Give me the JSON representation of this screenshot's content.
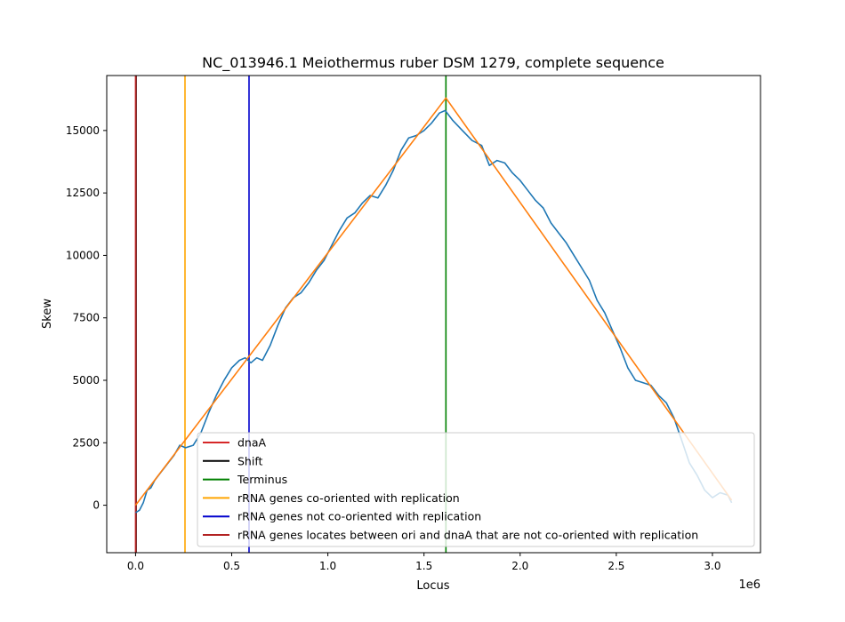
{
  "chart_data": {
    "type": "line",
    "title": "NC_013946.1 Meiothermus ruber DSM 1279, complete sequence",
    "xlabel": "Locus",
    "ylabel": "Skew",
    "x_offset_label": "1e6",
    "xlim": [
      -150000,
      3250000
    ],
    "ylim": [
      -1900,
      17200
    ],
    "x_ticks": [
      0,
      500000,
      1000000,
      1500000,
      2000000,
      2500000,
      3000000
    ],
    "x_tick_labels": [
      "0.0",
      "0.5",
      "1.0",
      "1.5",
      "2.0",
      "2.5",
      "3.0"
    ],
    "y_ticks": [
      0,
      2500,
      5000,
      7500,
      10000,
      12500,
      15000
    ],
    "y_tick_labels": [
      "0",
      "2500",
      "5000",
      "7500",
      "10000",
      "12500",
      "15000"
    ],
    "grid": false,
    "legend_position": "lower-right",
    "series": [
      {
        "name": "",
        "color": "#1f77b4",
        "points": [
          [
            0,
            -300
          ],
          [
            20000,
            -200
          ],
          [
            40000,
            100
          ],
          [
            60000,
            600
          ],
          [
            80000,
            700
          ],
          [
            100000,
            1000
          ],
          [
            130000,
            1300
          ],
          [
            160000,
            1600
          ],
          [
            200000,
            2000
          ],
          [
            230000,
            2400
          ],
          [
            260000,
            2300
          ],
          [
            300000,
            2400
          ],
          [
            340000,
            2900
          ],
          [
            380000,
            3700
          ],
          [
            420000,
            4400
          ],
          [
            460000,
            5000
          ],
          [
            500000,
            5500
          ],
          [
            540000,
            5800
          ],
          [
            570000,
            5900
          ],
          [
            600000,
            5700
          ],
          [
            630000,
            5900
          ],
          [
            660000,
            5800
          ],
          [
            700000,
            6400
          ],
          [
            740000,
            7200
          ],
          [
            780000,
            7900
          ],
          [
            820000,
            8300
          ],
          [
            860000,
            8500
          ],
          [
            900000,
            8900
          ],
          [
            940000,
            9400
          ],
          [
            980000,
            9800
          ],
          [
            1020000,
            10400
          ],
          [
            1060000,
            11000
          ],
          [
            1100000,
            11500
          ],
          [
            1140000,
            11700
          ],
          [
            1180000,
            12100
          ],
          [
            1220000,
            12400
          ],
          [
            1260000,
            12300
          ],
          [
            1300000,
            12800
          ],
          [
            1340000,
            13400
          ],
          [
            1380000,
            14200
          ],
          [
            1420000,
            14700
          ],
          [
            1460000,
            14800
          ],
          [
            1500000,
            15000
          ],
          [
            1540000,
            15300
          ],
          [
            1580000,
            15700
          ],
          [
            1610000,
            15800
          ],
          [
            1650000,
            15400
          ],
          [
            1700000,
            15000
          ],
          [
            1750000,
            14600
          ],
          [
            1800000,
            14400
          ],
          [
            1840000,
            13600
          ],
          [
            1880000,
            13800
          ],
          [
            1920000,
            13700
          ],
          [
            1960000,
            13300
          ],
          [
            2000000,
            13000
          ],
          [
            2040000,
            12600
          ],
          [
            2080000,
            12200
          ],
          [
            2120000,
            11900
          ],
          [
            2160000,
            11300
          ],
          [
            2200000,
            10900
          ],
          [
            2240000,
            10500
          ],
          [
            2280000,
            10000
          ],
          [
            2320000,
            9500
          ],
          [
            2360000,
            9000
          ],
          [
            2400000,
            8200
          ],
          [
            2440000,
            7700
          ],
          [
            2480000,
            7000
          ],
          [
            2520000,
            6300
          ],
          [
            2560000,
            5500
          ],
          [
            2600000,
            5000
          ],
          [
            2640000,
            4900
          ],
          [
            2680000,
            4800
          ],
          [
            2720000,
            4400
          ],
          [
            2760000,
            4100
          ],
          [
            2800000,
            3500
          ],
          [
            2840000,
            2600
          ],
          [
            2880000,
            1700
          ],
          [
            2920000,
            1200
          ],
          [
            2960000,
            600
          ],
          [
            3000000,
            300
          ],
          [
            3040000,
            500
          ],
          [
            3080000,
            400
          ],
          [
            3100000,
            100
          ]
        ]
      },
      {
        "name": "",
        "color": "#ff7f0e",
        "points": [
          [
            0,
            0
          ],
          [
            1614000,
            16300
          ],
          [
            3100000,
            200
          ]
        ]
      }
    ],
    "vertical_lines": [
      {
        "name": "dnaA",
        "x": 0,
        "color": "#d62728"
      },
      {
        "name": "Shift",
        "x": 3000,
        "color": "#000000"
      },
      {
        "name": "Terminus",
        "x": 1614000,
        "color": "#008000"
      },
      {
        "name": "rRNA genes co-oriented with replication",
        "x": 257000,
        "color": "#ffa500"
      },
      {
        "name": "rRNA genes not co-oriented with replication",
        "x": 590000,
        "color": "#0000cd"
      },
      {
        "name": "rRNA genes locates between ori and dnaA that are not co-oriented with replication",
        "x": 1500,
        "color": "#b22222"
      }
    ],
    "legend": [
      {
        "label": "dnaA",
        "color": "#d62728"
      },
      {
        "label": "Shift",
        "color": "#000000"
      },
      {
        "label": "Terminus",
        "color": "#008000"
      },
      {
        "label": "rRNA genes co-oriented with replication",
        "color": "#ffa500"
      },
      {
        "label": "rRNA genes not co-oriented with replication",
        "color": "#0000cd"
      },
      {
        "label": "rRNA genes locates between ori and dnaA that are not co-oriented with replication",
        "color": "#b22222"
      }
    ]
  }
}
